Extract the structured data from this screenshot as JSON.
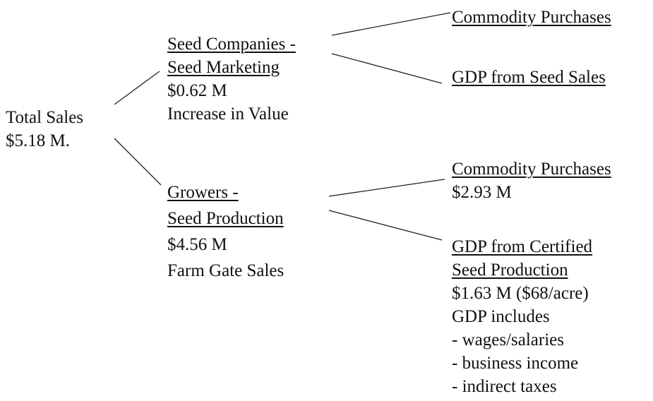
{
  "nodes": [
    {
      "heading": [],
      "lines": [
        "Total Sales",
        "$5.18 M."
      ]
    },
    {
      "heading": [
        "Seed Companies -",
        "Seed Marketing"
      ],
      "lines": [
        "$0.62 M",
        "Increase in Value"
      ]
    },
    {
      "heading": [
        "Growers -",
        "Seed Production"
      ],
      "lines": [
        "$4.56 M",
        "Farm Gate Sales"
      ]
    },
    {
      "heading": [
        "Commodity Purchases"
      ],
      "lines": []
    },
    {
      "heading": [
        "GDP from Seed Sales"
      ],
      "lines": []
    },
    {
      "heading": [
        "Commodity Purchases"
      ],
      "lines": [
        "$2.93 M"
      ]
    },
    {
      "heading": [
        "GDP from Certified",
        "Seed Production"
      ],
      "lines": [
        "$1.63 M ($68/acre)",
        "GDP includes",
        "- wages/salaries",
        "- business income",
        "- indirect taxes"
      ]
    }
  ]
}
